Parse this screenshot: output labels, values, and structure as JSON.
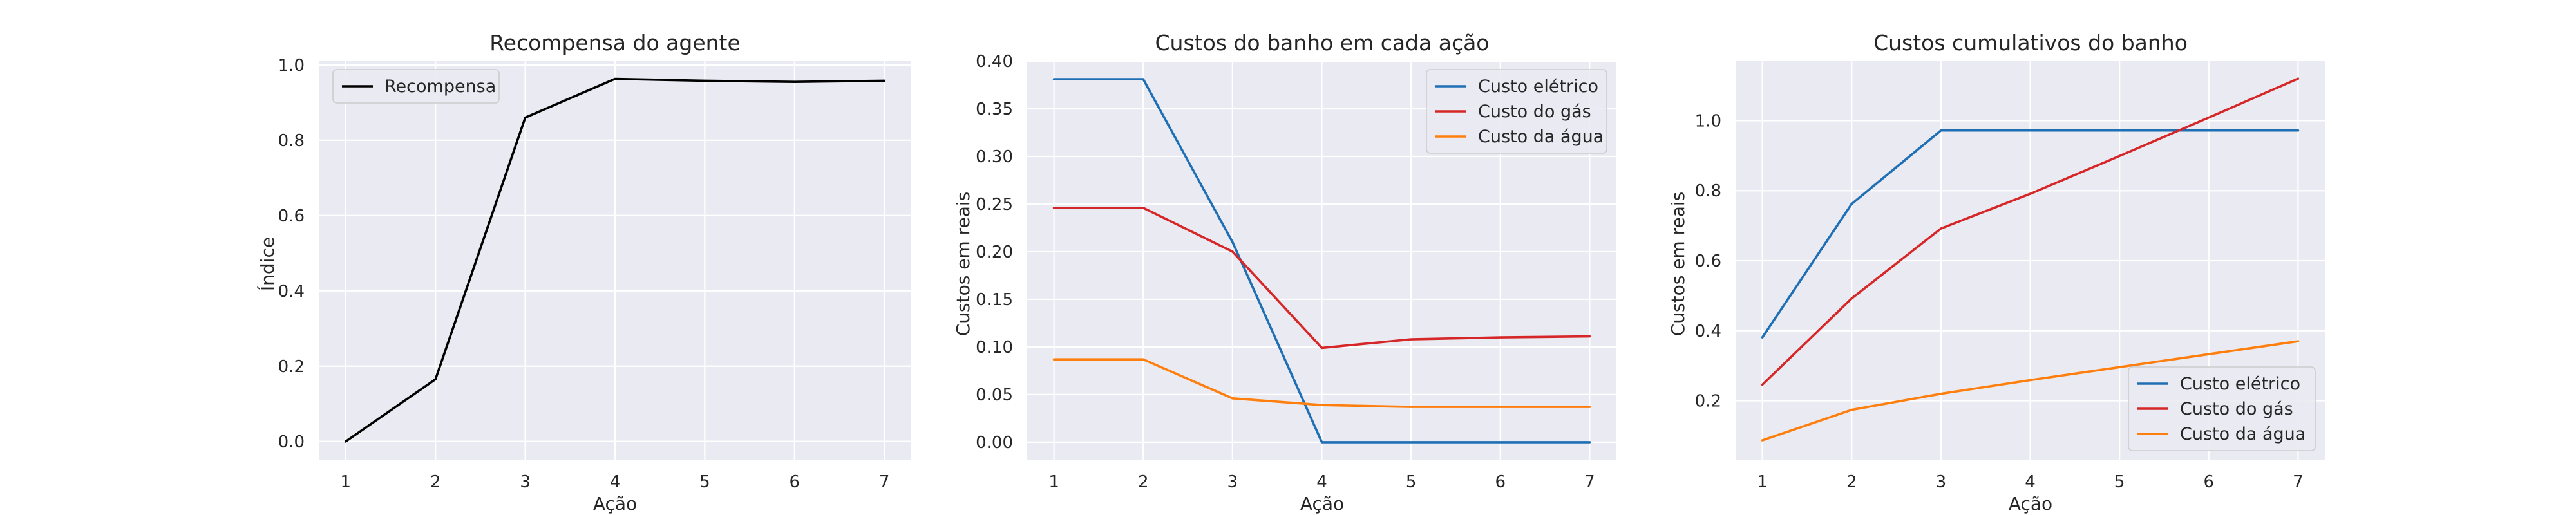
{
  "figure": {
    "background": "#ffffff",
    "axes_facecolor": "#eaeaf2",
    "grid_color": "#ffffff"
  },
  "chart_data": [
    {
      "type": "line",
      "title": "Recompensa do agente",
      "xlabel": "Ação",
      "ylabel": "Índice",
      "x": [
        1,
        2,
        3,
        4,
        5,
        6,
        7
      ],
      "xticks": [
        "1",
        "2",
        "3",
        "4",
        "5",
        "6",
        "7"
      ],
      "xlim": [
        0.7,
        7.3
      ],
      "ylim": [
        -0.05,
        1.01
      ],
      "yticks": [
        "0.0",
        "0.2",
        "0.4",
        "0.6",
        "0.8",
        "1.0"
      ],
      "grid": true,
      "legend_position": "upper-left",
      "series": [
        {
          "name": "Recompensa",
          "color": "#000000",
          "values": [
            0.0,
            0.165,
            0.86,
            0.963,
            0.958,
            0.955,
            0.958
          ]
        }
      ]
    },
    {
      "type": "line",
      "title": "Custos do banho em cada ação",
      "xlabel": "Ação",
      "ylabel": "Custos em reais",
      "x": [
        1,
        2,
        3,
        4,
        5,
        6,
        7
      ],
      "xticks": [
        "1",
        "2",
        "3",
        "4",
        "5",
        "6",
        "7"
      ],
      "xlim": [
        0.7,
        7.3
      ],
      "ylim": [
        -0.019,
        0.4
      ],
      "yticks": [
        "0.00",
        "0.05",
        "0.10",
        "0.15",
        "0.20",
        "0.25",
        "0.30",
        "0.35",
        "0.40"
      ],
      "grid": true,
      "legend_position": "upper-right",
      "series": [
        {
          "name": "Custo elétrico",
          "color": "#1f6fb4",
          "values": [
            0.381,
            0.381,
            0.21,
            0.0,
            0.0,
            0.0,
            0.0
          ]
        },
        {
          "name": "Custo do gás",
          "color": "#d62728",
          "values": [
            0.246,
            0.246,
            0.2,
            0.099,
            0.108,
            0.11,
            0.111
          ]
        },
        {
          "name": "Custo da água",
          "color": "#ff7f0e",
          "values": [
            0.087,
            0.087,
            0.046,
            0.039,
            0.037,
            0.037,
            0.037
          ]
        }
      ]
    },
    {
      "type": "line",
      "title": "Custos cumulativos do banho",
      "xlabel": "Ação",
      "ylabel": "Custos em reais",
      "x": [
        1,
        2,
        3,
        4,
        5,
        6,
        7
      ],
      "xticks": [
        "1",
        "2",
        "3",
        "4",
        "5",
        "6",
        "7"
      ],
      "xlim": [
        0.7,
        7.3
      ],
      "ylim": [
        0.03,
        1.17
      ],
      "yticks": [
        "0.2",
        "0.4",
        "0.6",
        "0.8",
        "1.0"
      ],
      "grid": true,
      "legend_position": "lower-right",
      "series": [
        {
          "name": "Custo elétrico",
          "color": "#1f6fb4",
          "values": [
            0.381,
            0.762,
            0.972,
            0.972,
            0.972,
            0.972,
            0.972
          ]
        },
        {
          "name": "Custo do gás",
          "color": "#d62728",
          "values": [
            0.246,
            0.492,
            0.692,
            0.791,
            0.899,
            1.009,
            1.12
          ]
        },
        {
          "name": "Custo da água",
          "color": "#ff7f0e",
          "values": [
            0.087,
            0.174,
            0.22,
            0.259,
            0.296,
            0.333,
            0.37
          ]
        }
      ]
    }
  ]
}
